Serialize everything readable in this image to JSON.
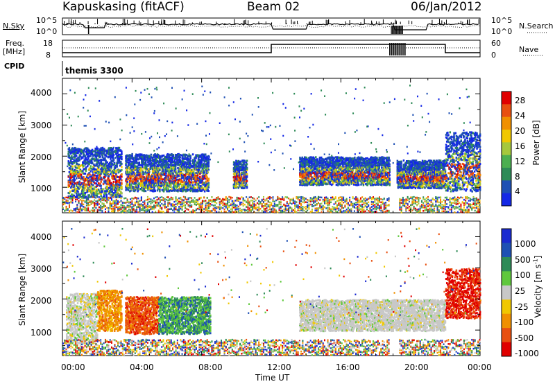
{
  "header": {
    "station": "Kapuskasing (fitACF)",
    "beam": "Beam 02",
    "date": "06/Jan/2012"
  },
  "status_panels": {
    "nsky_label": "N.Sky",
    "nsearch_label": "N.Search",
    "freq_label_1": "Freq.",
    "freq_label_2": "[MHz]",
    "nave_label": "Nave",
    "cpid_label": "CPID",
    "cpid_value": "themis 3300",
    "nsky_ticks": [
      "10^5",
      "10^0"
    ],
    "nsearch_ticks": [
      "10^5",
      "10^0"
    ],
    "freq_ticks": [
      "18",
      "8"
    ],
    "nave_ticks": [
      "60",
      "0"
    ]
  },
  "chart_data": [
    {
      "type": "heatmap",
      "name": "power",
      "ylabel": "Slant Range [km]",
      "xlabel": "Time UT",
      "x_ticks": [
        "00:00",
        "04:00",
        "08:00",
        "12:00",
        "16:00",
        "20:00",
        "00:00"
      ],
      "x_range_hours": [
        0,
        24
      ],
      "y_ticks": [
        1000,
        2000,
        3000,
        4000
      ],
      "ylim": [
        180,
        4500
      ],
      "colorbar": {
        "label": "Power [dB]",
        "ticks": [
          "4",
          "8",
          "12",
          "16",
          "20",
          "24",
          "28"
        ],
        "colors": [
          "#1428e6",
          "#1e50b4",
          "#2e8b57",
          "#4caf50",
          "#a6c83c",
          "#f0c800",
          "#f09000",
          "#e85010",
          "#e00000"
        ]
      },
      "scatter_blocks": [
        {
          "t0": 0.3,
          "t1": 3.4,
          "r0": 700,
          "r1": 2300
        },
        {
          "t0": 3.6,
          "t1": 8.4,
          "r0": 900,
          "r1": 2100
        },
        {
          "t0": 9.8,
          "t1": 10.6,
          "r0": 1000,
          "r1": 1900
        },
        {
          "t0": 13.6,
          "t1": 18.8,
          "r0": 1100,
          "r1": 2000
        },
        {
          "t0": 19.2,
          "t1": 22.0,
          "r0": 1000,
          "r1": 1900
        },
        {
          "t0": 22.0,
          "t1": 24.0,
          "r0": 900,
          "r1": 2800
        }
      ]
    },
    {
      "type": "heatmap",
      "name": "velocity",
      "ylabel": "Slant Range [km]",
      "xlabel": "Time UT",
      "x_ticks": [
        "00:00",
        "04:00",
        "08:00",
        "12:00",
        "16:00",
        "20:00",
        "00:00"
      ],
      "x_range_hours": [
        0,
        24
      ],
      "y_ticks": [
        1000,
        2000,
        3000,
        4000
      ],
      "ylim": [
        180,
        4500
      ],
      "colorbar": {
        "label": "Velocity [m s",
        "label_superscript": "-1",
        "label_close": "]",
        "ticks": [
          "1000",
          "500",
          "100",
          "25",
          "-25",
          "-100",
          "-500",
          "-1000"
        ],
        "colors": [
          "#1a2ad0",
          "#1e50b4",
          "#2e8b57",
          "#5fc83c",
          "#c8c8c8",
          "#f0c800",
          "#f09000",
          "#e85010",
          "#e00000"
        ]
      },
      "scatter_blocks": [
        {
          "t0": 0.2,
          "t1": 2.0,
          "r0": 600,
          "r1": 2200
        },
        {
          "t0": 2.0,
          "t1": 3.4,
          "r0": 1000,
          "r1": 2300
        },
        {
          "t0": 3.6,
          "t1": 8.5,
          "r0": 900,
          "r1": 2100
        },
        {
          "t0": 13.6,
          "t1": 22.0,
          "r0": 1000,
          "r1": 2000
        },
        {
          "t0": 22.0,
          "t1": 24.0,
          "r0": 1400,
          "r1": 3000
        }
      ]
    }
  ]
}
